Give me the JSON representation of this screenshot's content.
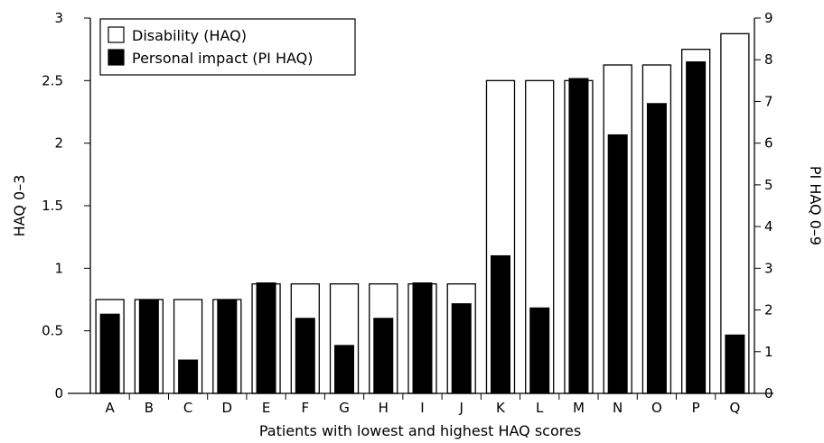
{
  "chart_data": {
    "type": "bar",
    "title": "",
    "xlabel": "Patients with lowest and highest HAQ scores",
    "ylabel": "HAQ 0–3",
    "y2label": "PI HAQ 0–9",
    "ylim": [
      0,
      3
    ],
    "y2lim": [
      0,
      9
    ],
    "yticks": [
      "0",
      "0.5",
      "1",
      "1.5",
      "2",
      "2.5",
      "3"
    ],
    "y2ticks": [
      "0",
      "1",
      "2",
      "3",
      "4",
      "5",
      "6",
      "7",
      "8",
      "9"
    ],
    "grid": false,
    "legend_position": "top-left",
    "categories": [
      "A",
      "B",
      "C",
      "D",
      "E",
      "F",
      "G",
      "H",
      "I",
      "J",
      "K",
      "L",
      "M",
      "N",
      "O",
      "P",
      "Q"
    ],
    "series": [
      {
        "name": "Disability (HAQ)",
        "axis": "left",
        "color": "#ffffff",
        "values": [
          0.75,
          0.75,
          0.75,
          0.75,
          0.875,
          0.875,
          0.875,
          0.875,
          0.875,
          0.875,
          2.5,
          2.5,
          2.5,
          2.625,
          2.625,
          2.75,
          2.875
        ]
      },
      {
        "name": "Personal impact (PI HAQ)",
        "axis": "right",
        "color": "#000000",
        "values": [
          1.9,
          2.25,
          0.8,
          2.25,
          2.65,
          1.8,
          1.15,
          1.8,
          2.65,
          2.15,
          3.3,
          2.05,
          7.55,
          6.2,
          6.95,
          7.95,
          1.4
        ]
      }
    ]
  }
}
